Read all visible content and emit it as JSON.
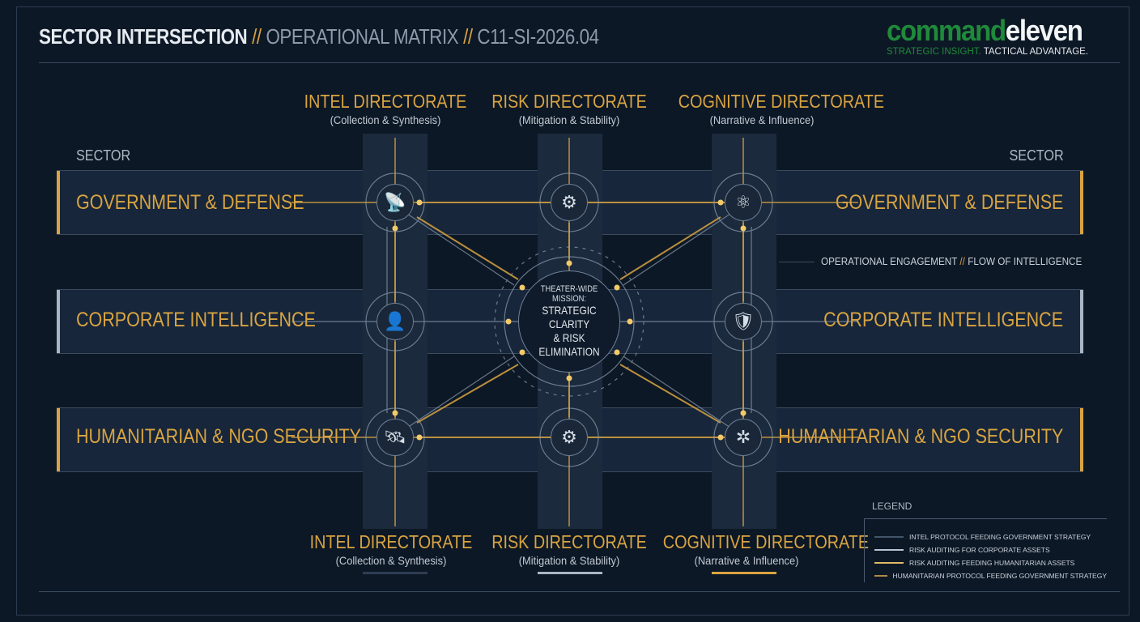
{
  "header": {
    "title_main": "SECTOR INTERSECTION",
    "separator": "//",
    "title_sub": "OPERATIONAL MATRIX",
    "code": "C11-SI-2026.04"
  },
  "logo": {
    "word_green": "command",
    "word_white": "eleven",
    "tagline_green": "STRATEGIC INSIGHT.",
    "tagline_white": "TACTICAL ADVANTAGE."
  },
  "sector_label": "SECTOR",
  "sectors": [
    {
      "label": "GOVERNMENT & DEFENSE",
      "accent": "#d9a441"
    },
    {
      "label": "CORPORATE INTELLIGENCE",
      "accent": "#a9b6c4"
    },
    {
      "label": "HUMANITARIAN & NGO SECURITY",
      "accent": "#d9a441"
    }
  ],
  "directorates": [
    {
      "title": "INTEL DIRECTORATE",
      "subtitle": "(Collection & Synthesis)",
      "bar_color": "#2e3e52"
    },
    {
      "title": "RISK DIRECTORATE",
      "subtitle": "(Mitigation & Stability)",
      "bar_color": "#a9b6c4"
    },
    {
      "title": "COGNITIVE DIRECTORATE",
      "subtitle": "(Narrative & Influence)",
      "bar_color": "#d9a441"
    }
  ],
  "nodes": [
    {
      "icon": "satellite-dish-icon",
      "glyph": "📡"
    },
    {
      "icon": "gear-shield-icon",
      "glyph": "⚙"
    },
    {
      "icon": "network-molecule-icon",
      "glyph": "⚛"
    },
    {
      "icon": "person-network-icon",
      "glyph": "👤"
    },
    {
      "icon": "shield-gear-icon",
      "glyph": "🛡"
    },
    {
      "icon": "satellite-icon",
      "glyph": "🛰"
    },
    {
      "icon": "shield-gear-icon",
      "glyph": "⚙"
    },
    {
      "icon": "network-hub-icon",
      "glyph": "✲"
    }
  ],
  "center": {
    "line1": "THEATER-WIDE MISSION:",
    "line2": "STRATEGIC CLARITY",
    "line3": "& RISK ELIMINATION"
  },
  "flow": {
    "a": "OPERATIONAL ENGAGEMENT",
    "sep": "//",
    "b": "FLOW OF INTELLIGENCE"
  },
  "legend": {
    "title": "LEGEND",
    "items": [
      {
        "label": "INTEL PROTOCOL FEEDING GOVERNMENT STRATEGY",
        "color": "#44556a"
      },
      {
        "label": "RISK AUDITING FOR CORPORATE ASSETS",
        "color": "#b8c4d0"
      },
      {
        "label": "RISK AUDITING FEEDING HUMANITARIAN ASSETS",
        "color": "#e0b965"
      },
      {
        "label": "HUMANITARIAN PROTOCOL FEEDING GOVERNMENT STRATEGY",
        "color": "#b08a4a"
      }
    ]
  },
  "colors": {
    "background": "#0d1826",
    "accent": "#d9a441",
    "steel": "#a9b6c4",
    "logo_green": "#1f8a3a"
  }
}
